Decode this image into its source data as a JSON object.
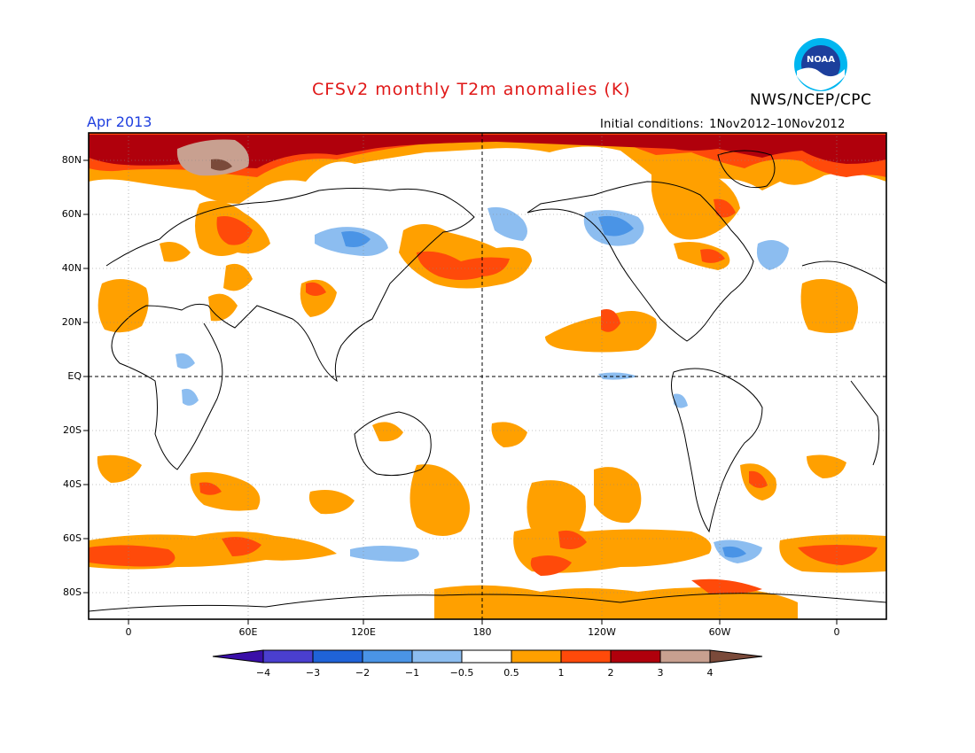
{
  "header": {
    "title": "CFSv2 monthly T2m anomalies (K)",
    "agency": "NWS/NCEP/CPC",
    "logo_text": "NOAA",
    "month": "Apr 2013",
    "initial_label": "Initial conditions:",
    "initial_value": "1Nov2012–10Nov2012"
  },
  "axes": {
    "lat_labels": [
      "80N",
      "60N",
      "40N",
      "20N",
      "EQ",
      "20S",
      "40S",
      "60S",
      "80S"
    ],
    "lon_labels": [
      "0",
      "60E",
      "120E",
      "180",
      "120W",
      "60W",
      "0"
    ]
  },
  "colorbar": {
    "labels": [
      "−4",
      "−3",
      "−2",
      "−1",
      "−0.5",
      "0.5",
      "1",
      "2",
      "3",
      "4"
    ],
    "colors": [
      "#3a0fa8",
      "#4a3fcf",
      "#1f63d8",
      "#4a94e6",
      "#8cbdf0",
      "#ffffff",
      "#ffa000",
      "#ff4a0a",
      "#b0000c",
      "#c8a090",
      "#7a4a3a"
    ]
  }
}
